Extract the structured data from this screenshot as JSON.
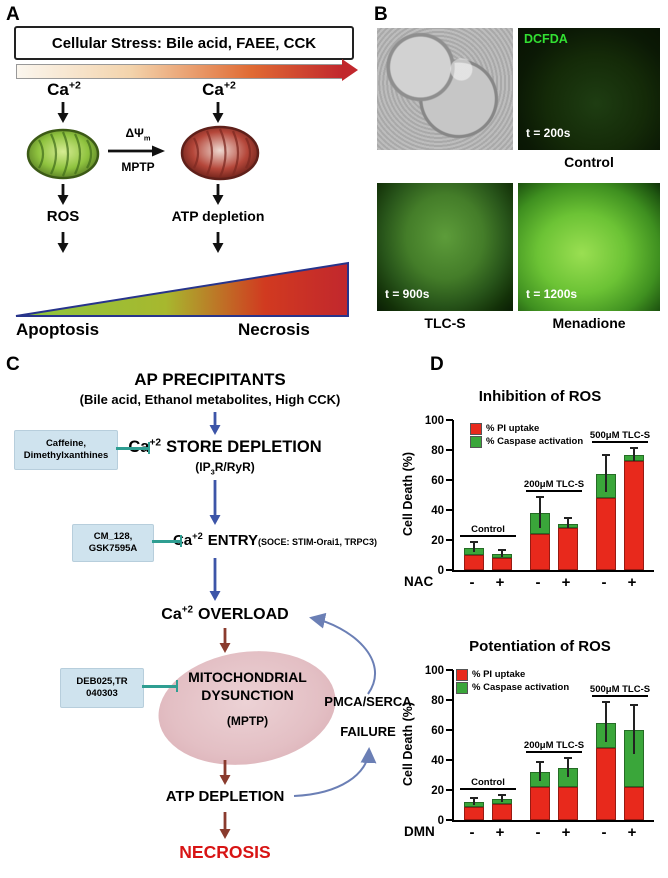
{
  "common": {
    "ca_base": "Ca",
    "ca_sup": "+2"
  },
  "panelA": {
    "label": "A",
    "stress_title": "Cellular Stress: Bile acid, FAEE, CCK",
    "delta_psi_base": "ΔΨ",
    "delta_psi_sub": "m",
    "mptp": "MPTP",
    "ros": "ROS",
    "atp_depletion": "ATP depletion",
    "apoptosis": "Apoptosis",
    "necrosis": "Necrosis"
  },
  "panelB": {
    "label": "B",
    "dcfda": "DCFDA",
    "t200": "t = 200s",
    "t900": "t = 900s",
    "t1200": "t = 1200s",
    "control": "Control",
    "tlcs": "TLC-S",
    "menadione": "Menadione"
  },
  "panelC": {
    "label": "C",
    "title": "AP PRECIPITANTS",
    "subtitle": "(Bile acid, Ethanol metabolites, High CCK)",
    "store_depletion": "STORE DEPLETION",
    "ip3r_pre": "(IP",
    "ip3r_sub": "3",
    "ip3r_post": "R/RyR)",
    "inhibitor1_line1": "Caffeine,",
    "inhibitor1_line2": "Dimethylxanthines",
    "entry": "ENTRY",
    "entry_detail": "(SOCE: STIM-Orai1, TRPC3)",
    "inhibitor2_line1": "CM_128,",
    "inhibitor2_line2": "GSK7595A",
    "overload": "OVERLOAD",
    "mito_line1": "MITOCHONDRIAL",
    "mito_line2": "DYSUNCTION",
    "mptp": "(MPTP)",
    "inhibitor3_line1": "DEB025,TR",
    "inhibitor3_line2": "040303",
    "pmca_line1": "PMCA/SERCA",
    "pmca_line2": "FAILURE",
    "atp_depletion": "ATP DEPLETION",
    "necrosis": "NECROSIS"
  },
  "panelD": {
    "label": "D"
  },
  "chart_data": [
    {
      "type": "bar",
      "stacked": true,
      "title": "Inhibition of ROS",
      "ylabel": "Cell Death (%)",
      "xlabel": "NAC",
      "ylim": [
        0,
        100
      ],
      "yticks": [
        0,
        20,
        40,
        60,
        80,
        100
      ],
      "x_signs": [
        "-",
        "+",
        "-",
        "+",
        "-",
        "+"
      ],
      "group_labels": [
        "Control",
        "200μM TLC-S",
        "500μM TLC-S"
      ],
      "series": [
        {
          "name": "% PI uptake",
          "color": "#e8291c",
          "values": [
            10,
            8,
            24,
            28,
            48,
            73
          ]
        },
        {
          "name": "% Caspase activation",
          "color": "#3aa63a",
          "values": [
            5,
            3,
            14,
            3,
            16,
            4
          ]
        }
      ],
      "errors": [
        3,
        2,
        10,
        3,
        12,
        4
      ],
      "legend_position": "top-left-inside",
      "grid": false
    },
    {
      "type": "bar",
      "stacked": true,
      "title": "Potentiation of ROS",
      "ylabel": "Cell Death (%)",
      "xlabel": "DMN",
      "ylim": [
        0,
        100
      ],
      "yticks": [
        0,
        20,
        40,
        60,
        80,
        100
      ],
      "x_signs": [
        "-",
        "+",
        "-",
        "+",
        "-",
        "+"
      ],
      "group_labels": [
        "Control",
        "200μM TLC-S",
        "500μM TLC-S"
      ],
      "series": [
        {
          "name": "% PI uptake",
          "color": "#e8291c",
          "values": [
            9,
            11,
            22,
            22,
            48,
            22
          ]
        },
        {
          "name": "% Caspase activation",
          "color": "#3aa63a",
          "values": [
            3,
            3,
            10,
            13,
            17,
            38
          ]
        }
      ],
      "errors": [
        2,
        2,
        6,
        6,
        13,
        16
      ],
      "legend_position": "top-left-inside",
      "grid": false
    }
  ]
}
